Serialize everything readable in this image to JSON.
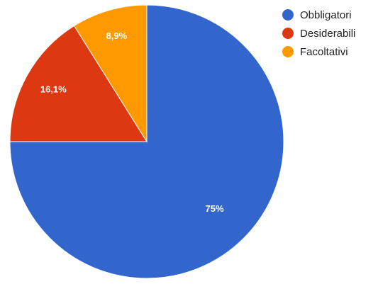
{
  "chart_data": {
    "type": "pie",
    "title": "",
    "slices": [
      {
        "label": "Obbligatori",
        "value": 75,
        "value_label": "75%",
        "color": "#3366cc"
      },
      {
        "label": "Desiderabili",
        "value": 16.1,
        "value_label": "16,1%",
        "color": "#dc3912"
      },
      {
        "label": "Facoltativi",
        "value": 8.9,
        "value_label": "8,9%",
        "color": "#ff9900"
      }
    ],
    "start_angle": "12 o'clock",
    "direction": "clockwise",
    "legend_position": "top-right"
  }
}
